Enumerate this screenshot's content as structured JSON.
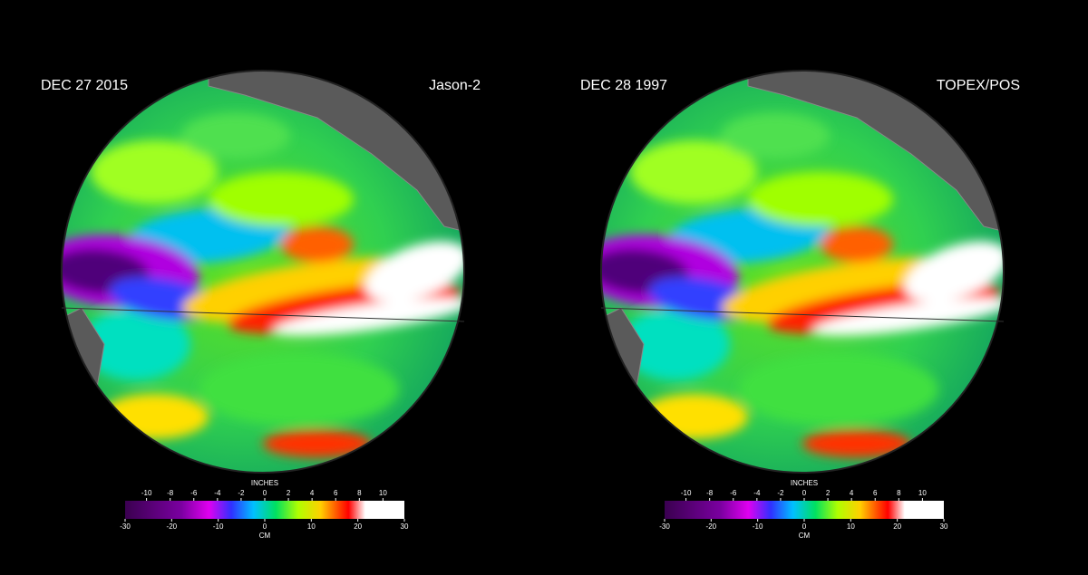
{
  "panels": [
    {
      "date": "DEC 27  2015",
      "satellite": "Jason-2"
    },
    {
      "date": "DEC 28  1997",
      "satellite": "TOPEX/POS"
    }
  ],
  "colorbar": {
    "inches_label": "INCHES",
    "inches_ticks": [
      -10,
      -8,
      -6,
      -4,
      -2,
      0,
      2,
      4,
      6,
      8,
      10
    ],
    "cm_label": "CM",
    "cm_ticks": [
      -30,
      -20,
      -10,
      0,
      10,
      20,
      30
    ],
    "cm_lim": [
      -30,
      30
    ]
  }
}
